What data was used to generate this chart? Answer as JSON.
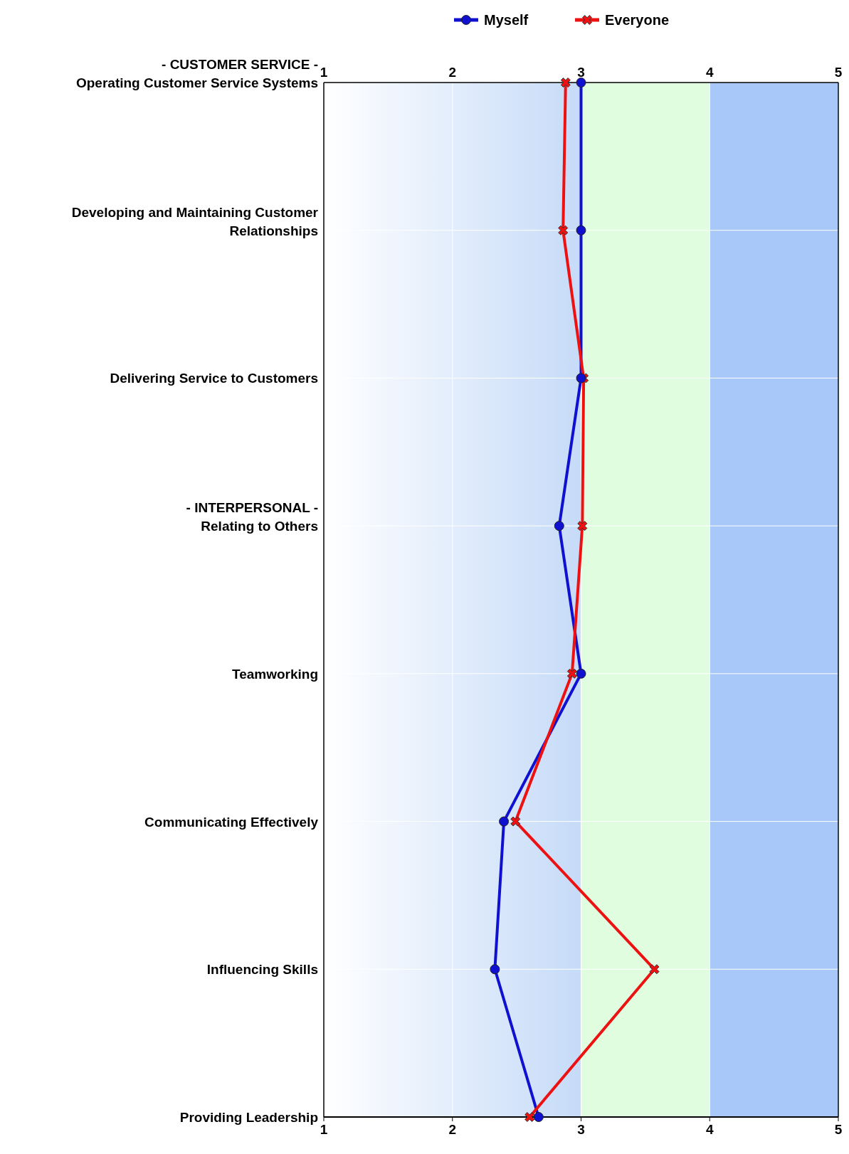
{
  "chart_data": {
    "type": "line",
    "orientation": "horizontal",
    "categories": [
      "- CUSTOMER SERVICE -\nOperating Customer Service Systems",
      "Developing and Maintaining Customer\nRelationships",
      "Delivering Service to Customers",
      "- INTERPERSONAL -\nRelating to Others",
      "Teamworking",
      "Communicating Effectively",
      "Influencing Skills",
      "Providing Leadership"
    ],
    "series": [
      {
        "name": "Myself",
        "color": "#1010d0",
        "marker": "circle",
        "values": [
          3.0,
          3.0,
          3.0,
          2.83,
          3.0,
          2.4,
          2.33,
          2.67
        ]
      },
      {
        "name": "Everyone",
        "color": "#ee1111",
        "marker": "cross",
        "values": [
          2.88,
          2.86,
          3.02,
          3.01,
          2.93,
          2.49,
          3.57,
          2.6
        ]
      }
    ],
    "xlim": [
      1,
      5
    ],
    "xticks": [
      1,
      2,
      3,
      4,
      5
    ],
    "x2lim": [
      1,
      5
    ],
    "x2ticks": [
      1,
      2,
      3,
      4,
      5
    ],
    "bands": [
      {
        "axis": "x",
        "from": 1,
        "to": 3,
        "color": "#c6dbf8"
      },
      {
        "axis": "x",
        "from": 3,
        "to": 4,
        "color": "#e0fde0"
      },
      {
        "axis": "x",
        "from": 4,
        "to": 5,
        "color": "#a9c8fa"
      }
    ],
    "grid": true,
    "legend": "top"
  }
}
